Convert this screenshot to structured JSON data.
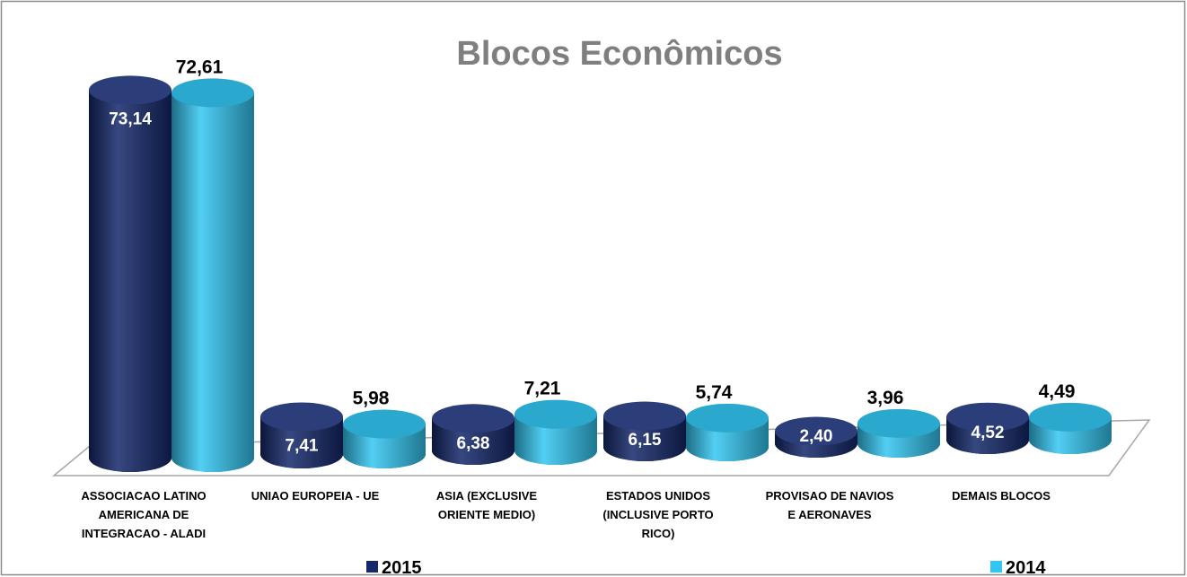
{
  "chart_data": {
    "type": "bar3d",
    "title": "Blocos Econômicos",
    "categories": [
      "ASSOCIACAO LATINO AMERICANA DE INTEGRACAO - ALADI",
      "UNIAO EUROPEIA - UE",
      "ASIA (EXCLUSIVE ORIENTE MEDIO)",
      "ESTADOS UNIDOS (INCLUSIVE PORTO RICO)",
      "PROVISAO DE NAVIOS E AERONAVES",
      "DEMAIS BLOCOS"
    ],
    "series": [
      {
        "name": "2015",
        "color": "#14286a",
        "values": [
          73.14,
          7.41,
          6.38,
          6.15,
          2.4,
          4.52
        ],
        "value_labels": [
          "73,14",
          "7,41",
          "6,38",
          "6,15",
          "2,40",
          "4,52"
        ]
      },
      {
        "name": "2014",
        "color": "#33c6f2",
        "values": [
          72.61,
          5.98,
          7.21,
          5.74,
          3.96,
          4.49
        ],
        "value_labels": [
          "72,61",
          "5,98",
          "7,21",
          "5,74",
          "3,96",
          "4,49"
        ]
      }
    ]
  }
}
